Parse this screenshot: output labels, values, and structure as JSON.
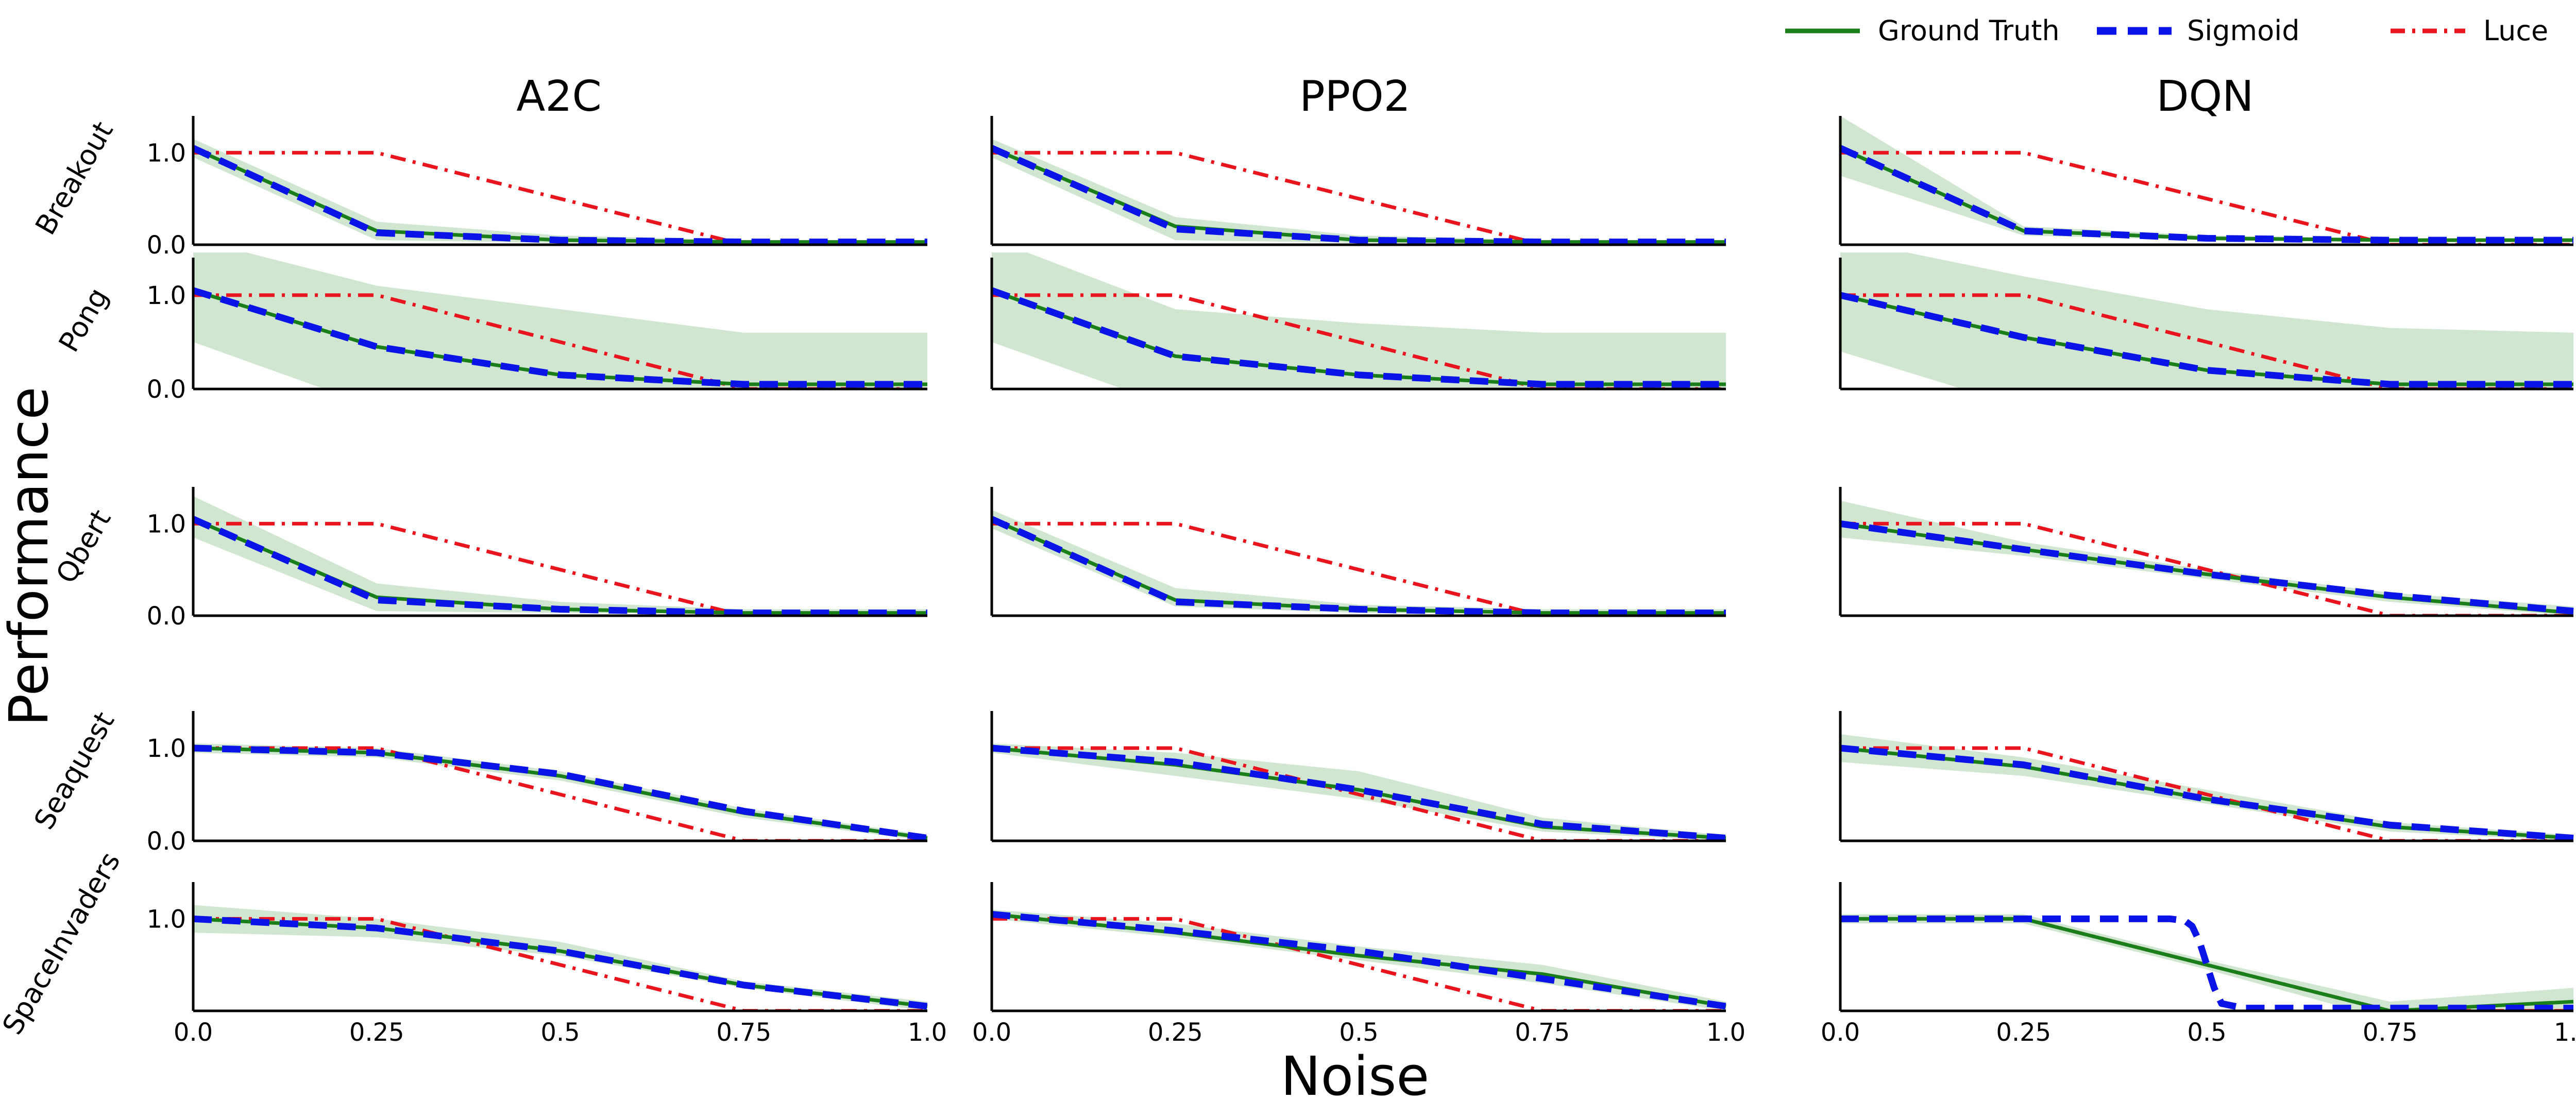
{
  "figure": {
    "xlabel": "Noise",
    "ylabel": "Performance",
    "columns": [
      "A2C",
      "PPO2",
      "DQN"
    ],
    "rows": [
      "Breakout",
      "Pong",
      "Qbert",
      "Seaquest",
      "SpaceInvaders"
    ],
    "colors": {
      "ground_truth": "#1a7f1a",
      "band": "#cde5cd",
      "sigmoid": "#0a14e6",
      "luce": "#e8141e"
    }
  },
  "legend": {
    "items": [
      {
        "label": "Ground Truth",
        "key": "ground_truth",
        "style": "solid"
      },
      {
        "label": "Sigmoid",
        "key": "sigmoid",
        "style": "dashed"
      },
      {
        "label": "Luce",
        "key": "luce",
        "style": "dashdot"
      }
    ]
  },
  "chart_data": {
    "type": "line",
    "xlim": [
      0,
      1.0
    ],
    "ylim": [
      0,
      1.4
    ],
    "x_ticks": [
      "0.0",
      "0.25",
      "0.5",
      "0.75",
      "1.0"
    ],
    "x_tick_values": [
      0,
      0.25,
      0.5,
      0.75,
      1.0
    ],
    "y_ticks": [
      "0.0",
      "1.0"
    ],
    "y_tick_values": [
      0.0,
      1.0
    ],
    "x": [
      0,
      0.25,
      0.5,
      0.75,
      1.0
    ],
    "panels": [
      {
        "row": "Breakout",
        "column": "A2C",
        "y_ticks": [
          "0.0",
          "1.0"
        ],
        "ground_truth": [
          1.05,
          0.15,
          0.05,
          0.03,
          0.03
        ],
        "band_low": [
          0.95,
          0.05,
          0.02,
          0.02,
          0.02
        ],
        "band_high": [
          1.15,
          0.25,
          0.1,
          0.05,
          0.05
        ],
        "sigmoid": [
          1.05,
          0.13,
          0.05,
          0.03,
          0.03
        ],
        "luce": [
          1.0,
          1.0,
          0.5,
          0.0,
          0.0
        ]
      },
      {
        "row": "Breakout",
        "column": "PPO2",
        "y_ticks": [],
        "ground_truth": [
          1.05,
          0.2,
          0.05,
          0.03,
          0.03
        ],
        "band_low": [
          0.95,
          0.05,
          0.02,
          0.02,
          0.02
        ],
        "band_high": [
          1.15,
          0.3,
          0.1,
          0.05,
          0.05
        ],
        "sigmoid": [
          1.05,
          0.17,
          0.05,
          0.03,
          0.03
        ],
        "luce": [
          1.0,
          1.0,
          0.5,
          0.0,
          0.0
        ]
      },
      {
        "row": "Breakout",
        "column": "DQN",
        "y_ticks": [],
        "ground_truth": [
          1.05,
          0.15,
          0.07,
          0.05,
          0.05
        ],
        "band_low": [
          0.75,
          0.1,
          0.05,
          0.03,
          0.03
        ],
        "band_high": [
          1.4,
          0.2,
          0.1,
          0.07,
          0.07
        ],
        "sigmoid": [
          1.05,
          0.15,
          0.07,
          0.05,
          0.05
        ],
        "luce": [
          1.0,
          1.0,
          0.5,
          0.0,
          0.0
        ]
      },
      {
        "row": "Pong",
        "column": "A2C",
        "y_ticks": [
          "0.0",
          "1.0"
        ],
        "ground_truth": [
          1.05,
          0.45,
          0.15,
          0.05,
          0.05
        ],
        "band_low": [
          0.5,
          -0.2,
          -0.3,
          -0.3,
          -0.3
        ],
        "band_high": [
          1.6,
          1.1,
          0.85,
          0.6,
          0.6
        ],
        "sigmoid": [
          1.05,
          0.45,
          0.15,
          0.05,
          0.05
        ],
        "luce": [
          1.0,
          1.0,
          0.5,
          0.0,
          0.0
        ]
      },
      {
        "row": "Pong",
        "column": "PPO2",
        "y_ticks": [],
        "ground_truth": [
          1.05,
          0.35,
          0.15,
          0.05,
          0.05
        ],
        "band_low": [
          0.5,
          -0.2,
          -0.3,
          -0.3,
          -0.3
        ],
        "band_high": [
          1.6,
          0.85,
          0.7,
          0.6,
          0.6
        ],
        "sigmoid": [
          1.05,
          0.35,
          0.15,
          0.05,
          0.05
        ],
        "luce": [
          1.0,
          1.0,
          0.5,
          0.0,
          0.0
        ]
      },
      {
        "row": "Pong",
        "column": "DQN",
        "y_ticks": [],
        "ground_truth": [
          1.0,
          0.55,
          0.2,
          0.05,
          0.05
        ],
        "band_low": [
          0.4,
          -0.2,
          -0.3,
          -0.3,
          -0.3
        ],
        "band_high": [
          1.6,
          1.2,
          0.85,
          0.65,
          0.6
        ],
        "sigmoid": [
          1.0,
          0.55,
          0.2,
          0.05,
          0.05
        ],
        "luce": [
          1.0,
          1.0,
          0.5,
          0.0,
          0.0
        ]
      },
      {
        "row": "Qbert",
        "column": "A2C",
        "y_ticks": [
          "0.0",
          "1.0"
        ],
        "ground_truth": [
          1.05,
          0.2,
          0.07,
          0.03,
          0.03
        ],
        "band_low": [
          0.85,
          0.05,
          0.03,
          0.02,
          0.02
        ],
        "band_high": [
          1.3,
          0.35,
          0.15,
          0.07,
          0.07
        ],
        "sigmoid": [
          1.05,
          0.17,
          0.07,
          0.03,
          0.03
        ],
        "luce": [
          1.0,
          1.0,
          0.5,
          0.0,
          0.0
        ]
      },
      {
        "row": "Qbert",
        "column": "PPO2",
        "y_ticks": [],
        "ground_truth": [
          1.05,
          0.17,
          0.07,
          0.03,
          0.03
        ],
        "band_low": [
          0.95,
          0.1,
          0.03,
          0.02,
          0.02
        ],
        "band_high": [
          1.15,
          0.3,
          0.12,
          0.07,
          0.07
        ],
        "sigmoid": [
          1.05,
          0.15,
          0.07,
          0.03,
          0.03
        ],
        "luce": [
          1.0,
          1.0,
          0.5,
          0.0,
          0.0
        ]
      },
      {
        "row": "Qbert",
        "column": "DQN",
        "y_ticks": [],
        "ground_truth": [
          1.0,
          0.72,
          0.45,
          0.2,
          0.03
        ],
        "band_low": [
          0.85,
          0.65,
          0.4,
          0.15,
          0.0
        ],
        "band_high": [
          1.25,
          0.8,
          0.5,
          0.25,
          0.1
        ],
        "sigmoid": [
          1.0,
          0.72,
          0.45,
          0.22,
          0.05
        ],
        "luce": [
          1.0,
          1.0,
          0.5,
          0.0,
          0.0
        ]
      },
      {
        "row": "Seaquest",
        "column": "A2C",
        "y_ticks": [
          "0.0",
          "1.0"
        ],
        "ground_truth": [
          1.0,
          0.95,
          0.7,
          0.3,
          0.03
        ],
        "band_low": [
          0.95,
          0.9,
          0.65,
          0.25,
          0.0
        ],
        "band_high": [
          1.05,
          1.0,
          0.75,
          0.35,
          0.06
        ],
        "sigmoid": [
          1.0,
          0.95,
          0.72,
          0.32,
          0.03
        ],
        "luce": [
          1.0,
          1.0,
          0.5,
          0.0,
          0.0
        ]
      },
      {
        "row": "Seaquest",
        "column": "PPO2",
        "y_ticks": [],
        "ground_truth": [
          1.0,
          0.82,
          0.55,
          0.15,
          0.03
        ],
        "band_low": [
          0.95,
          0.7,
          0.45,
          0.1,
          0.0
        ],
        "band_high": [
          1.05,
          0.95,
          0.75,
          0.25,
          0.06
        ],
        "sigmoid": [
          1.0,
          0.85,
          0.55,
          0.18,
          0.03
        ],
        "luce": [
          1.0,
          1.0,
          0.5,
          0.0,
          0.0
        ]
      },
      {
        "row": "Seaquest",
        "column": "DQN",
        "y_ticks": [],
        "ground_truth": [
          1.0,
          0.8,
          0.45,
          0.15,
          0.03
        ],
        "band_low": [
          0.85,
          0.7,
          0.4,
          0.1,
          0.0
        ],
        "band_high": [
          1.15,
          0.9,
          0.55,
          0.2,
          0.06
        ],
        "sigmoid": [
          1.0,
          0.82,
          0.45,
          0.17,
          0.03
        ],
        "luce": [
          1.0,
          1.0,
          0.5,
          0.0,
          0.0
        ]
      },
      {
        "row": "SpaceInvaders",
        "column": "A2C",
        "y_ticks": [
          "1.0"
        ],
        "ground_truth": [
          1.0,
          0.9,
          0.65,
          0.28,
          0.05
        ],
        "band_low": [
          0.85,
          0.8,
          0.6,
          0.25,
          0.0
        ],
        "band_high": [
          1.15,
          1.0,
          0.75,
          0.32,
          0.1
        ],
        "sigmoid": [
          1.0,
          0.9,
          0.65,
          0.28,
          0.05
        ],
        "luce": [
          1.0,
          1.0,
          0.5,
          0.0,
          0.0
        ]
      },
      {
        "row": "SpaceInvaders",
        "column": "PPO2",
        "y_ticks": [],
        "ground_truth": [
          1.05,
          0.85,
          0.6,
          0.4,
          0.05
        ],
        "band_low": [
          1.0,
          0.8,
          0.55,
          0.3,
          0.0
        ],
        "band_high": [
          1.1,
          0.95,
          0.7,
          0.5,
          0.1
        ],
        "sigmoid": [
          1.05,
          0.87,
          0.65,
          0.35,
          0.05
        ],
        "luce": [
          1.0,
          1.0,
          0.5,
          0.0,
          0.0
        ]
      },
      {
        "row": "SpaceInvaders",
        "column": "DQN",
        "y_ticks": [],
        "ground_truth": [
          1.0,
          1.0,
          0.5,
          0.0,
          0.1
        ],
        "band_low": [
          0.95,
          0.95,
          0.45,
          -0.1,
          -0.05
        ],
        "band_high": [
          1.05,
          1.05,
          0.55,
          0.1,
          0.25
        ],
        "sigmoid_x": [
          0,
          0.45,
          0.47,
          0.48,
          0.49,
          0.5,
          0.51,
          0.52,
          0.55,
          1.0
        ],
        "sigmoid": [
          1.0,
          1.0,
          0.98,
          0.92,
          0.75,
          0.5,
          0.25,
          0.08,
          0.03,
          0.03
        ],
        "luce": [
          1.0,
          1.0,
          0.5,
          0.0,
          0.0
        ]
      }
    ]
  }
}
